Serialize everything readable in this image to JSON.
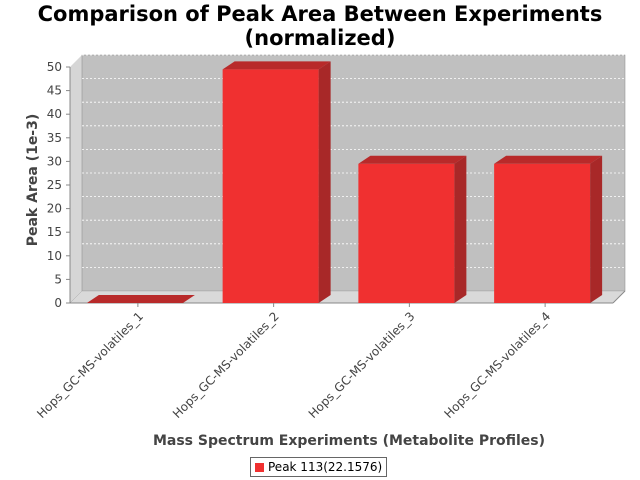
{
  "chart_data": {
    "type": "bar",
    "title": "Comparison of Peak Area Between Experiments (normalized)",
    "title_lines": [
      "Comparison of Peak Area Between Experiments",
      "(normalized)"
    ],
    "xlabel": "Mass Spectrum Experiments (Metabolite Profiles)",
    "ylabel": "Peak Area (1e-3)",
    "categories": [
      "Hops_GC-MS-volatiles_1",
      "Hops_GC-MS-volatiles_2",
      "Hops_GC-MS-volatiles_3",
      "Hops_GC-MS-volatiles_4"
    ],
    "series": [
      {
        "name": "Peak 113(22.1576)",
        "values": [
          0,
          49.5,
          29.5,
          29.5
        ],
        "color": "#f03030"
      }
    ],
    "ylim": [
      0,
      50
    ],
    "yticks": [
      0,
      5,
      10,
      15,
      20,
      25,
      30,
      35,
      40,
      45,
      50
    ],
    "grid": true,
    "legend_position": "bottom",
    "render_3d": true,
    "plot_background": "#c0c0c0"
  }
}
